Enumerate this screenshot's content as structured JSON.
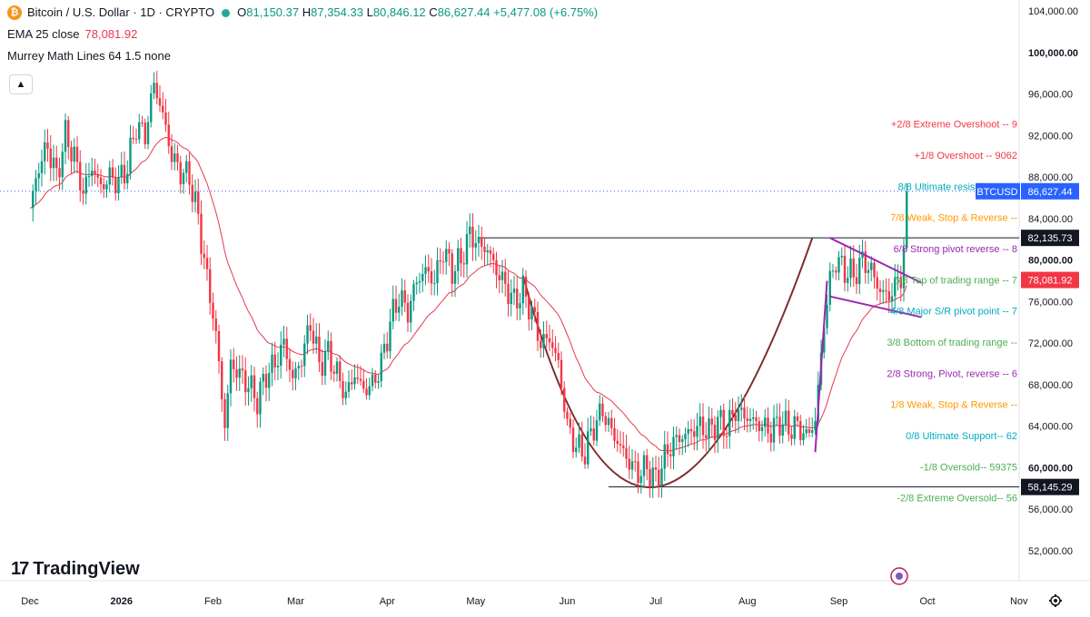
{
  "legend": {
    "symbol_title": "Bitcoin / U.S. Dollar · 1D · CRYPTO",
    "ohlc": {
      "o_label": "O",
      "o": "81,150.37",
      "h_label": "H",
      "h": "87,354.33",
      "l_label": "L",
      "l": "80,846.12",
      "c_label": "C",
      "c": "86,627.44",
      "change": "+5,477.08 (+6.75%)"
    },
    "ema_label": "EMA 25 close",
    "ema_value": "78,081.92",
    "murrey_label": "Murrey Math Lines 64 1.5 none"
  },
  "branding": {
    "logo_text": "TradingView"
  },
  "colors": {
    "up": "#089981",
    "down": "#f23645",
    "ema": "#e53950",
    "cup": "#7b2c2c",
    "flag": "#9c27b0",
    "price_tag": "#2962ff"
  },
  "icons": {
    "collapse": "chevron-up-icon",
    "settings": "gear-icon",
    "symbol": "bitcoin-icon"
  },
  "chart_data": {
    "type": "candlestick",
    "title": "Bitcoin / U.S. Dollar · 1D · CRYPTO",
    "ylim": [
      50000,
      104000
    ],
    "y_ticks": [
      "104,000.00",
      "100,000.00",
      "96,000.00",
      "92,000.00",
      "88,000.00",
      "84,000.00",
      "80,000.00",
      "76,000.00",
      "72,000.00",
      "68,000.00",
      "64,000.00",
      "60,000.00",
      "56,000.00",
      "52,000.00"
    ],
    "y_tick_values": [
      104000,
      100000,
      96000,
      92000,
      88000,
      84000,
      80000,
      76000,
      72000,
      68000,
      64000,
      60000,
      56000,
      52000
    ],
    "x_ticks": [
      "Dec",
      "2026",
      "Feb",
      "Mar",
      "Apr",
      "May",
      "Jun",
      "Jul",
      "Aug",
      "Sep",
      "Oct",
      "Nov"
    ],
    "x_tick_days": [
      0,
      31,
      62,
      90,
      121,
      151,
      182,
      212,
      243,
      274,
      304,
      335
    ],
    "anchor_path": [
      [
        0,
        85000
      ],
      [
        3,
        89000
      ],
      [
        6,
        91000
      ],
      [
        9,
        88000
      ],
      [
        12,
        92000
      ],
      [
        15,
        90000
      ],
      [
        18,
        86500
      ],
      [
        21,
        89000
      ],
      [
        24,
        87000
      ],
      [
        27,
        88000
      ],
      [
        30,
        87500
      ],
      [
        33,
        89000
      ],
      [
        36,
        93000
      ],
      [
        39,
        92000
      ],
      [
        42,
        97000
      ],
      [
        45,
        94000
      ],
      [
        48,
        90000
      ],
      [
        51,
        88500
      ],
      [
        54,
        88000
      ],
      [
        57,
        84000
      ],
      [
        60,
        78000
      ],
      [
        62,
        75000
      ],
      [
        64,
        70000
      ],
      [
        66,
        64000
      ],
      [
        68,
        70000
      ],
      [
        71,
        69000
      ],
      [
        74,
        68000
      ],
      [
        77,
        66500
      ],
      [
        80,
        69000
      ],
      [
        83,
        70000
      ],
      [
        86,
        72000
      ],
      [
        89,
        68500
      ],
      [
        92,
        70500
      ],
      [
        95,
        74000
      ],
      [
        98,
        70000
      ],
      [
        101,
        71000
      ],
      [
        104,
        69000
      ],
      [
        107,
        67000
      ],
      [
        110,
        69000
      ],
      [
        113,
        67500
      ],
      [
        116,
        68000
      ],
      [
        119,
        70000
      ],
      [
        122,
        74000
      ],
      [
        125,
        76500
      ],
      [
        128,
        75000
      ],
      [
        131,
        78000
      ],
      [
        134,
        79000
      ],
      [
        137,
        78000
      ],
      [
        140,
        81000
      ],
      [
        143,
        79000
      ],
      [
        146,
        80000
      ],
      [
        149,
        82500
      ],
      [
        152,
        81500
      ],
      [
        155,
        81000
      ],
      [
        158,
        79000
      ],
      [
        161,
        77500
      ],
      [
        164,
        76000
      ],
      [
        167,
        77000
      ],
      [
        170,
        75000
      ],
      [
        173,
        72000
      ],
      [
        176,
        72500
      ],
      [
        179,
        70000
      ],
      [
        182,
        64000
      ],
      [
        185,
        62000
      ],
      [
        188,
        61500
      ],
      [
        191,
        64000
      ],
      [
        194,
        65500
      ],
      [
        197,
        63500
      ],
      [
        200,
        62000
      ],
      [
        203,
        60500
      ],
      [
        206,
        59500
      ],
      [
        209,
        60000
      ],
      [
        212,
        58800
      ],
      [
        215,
        61000
      ],
      [
        218,
        62500
      ],
      [
        221,
        63000
      ],
      [
        224,
        63500
      ],
      [
        227,
        64000
      ],
      [
        230,
        63500
      ],
      [
        233,
        64500
      ],
      [
        236,
        63800
      ],
      [
        239,
        65500
      ],
      [
        242,
        65000
      ],
      [
        245,
        64500
      ],
      [
        248,
        64000
      ],
      [
        251,
        63500
      ],
      [
        254,
        64500
      ],
      [
        257,
        63800
      ],
      [
        260,
        64000
      ],
      [
        263,
        63000
      ],
      [
        266,
        64500
      ],
      [
        269,
        74000
      ],
      [
        271,
        78000
      ],
      [
        273,
        80000
      ],
      [
        276,
        79000
      ],
      [
        279,
        78500
      ],
      [
        282,
        80000
      ],
      [
        285,
        79000
      ],
      [
        288,
        77000
      ],
      [
        291,
        76500
      ],
      [
        293,
        77500
      ],
      [
        295,
        78500
      ],
      [
        296,
        81150
      ],
      [
        297,
        86627
      ]
    ],
    "ema_period": 25,
    "ema_last": 78081.92,
    "last_candle": {
      "open": 81150.37,
      "high": 87354.33,
      "low": 80846.12,
      "close": 86627.44
    },
    "price_labels": [
      {
        "text": "BTCUSD",
        "value": 86627.44,
        "value_text": "86,627.44"
      },
      {
        "text": "",
        "value": 82135.73,
        "value_text": "82,135.73"
      },
      {
        "text": "",
        "value": 78081.92,
        "value_text": "78,081.92"
      },
      {
        "text": "",
        "value": 58145.29,
        "value_text": "58,145.29"
      }
    ],
    "horizontal_lines": [
      {
        "value": 82135.73,
        "x_from": 152,
        "x_to": 360
      },
      {
        "value": 58145.29,
        "x_from": 196,
        "x_to": 360
      }
    ],
    "cup": {
      "x": [
        167,
        212,
        265
      ],
      "y": [
        78500,
        58145,
        82135
      ]
    },
    "flag": {
      "pole": {
        "x": [
          266,
          270
        ],
        "y": [
          61500,
          78000
        ]
      },
      "upper": {
        "x": [
          271,
          302
        ],
        "y": [
          82135,
          77800
        ]
      },
      "lower": {
        "x": [
          271,
          302
        ],
        "y": [
          76500,
          74500
        ]
      }
    },
    "murrey_levels": [
      {
        "label": "+2/8 Extreme Overshoot --",
        "value_text": "9",
        "y": 93100,
        "color": "#f23645"
      },
      {
        "label": "+1/8 Overshoot --",
        "value_text": "9062",
        "y": 90100,
        "color": "#f23645"
      },
      {
        "label": "8/8 Ultimate resistance --",
        "value_text": "8",
        "y": 87100,
        "color": "#00acc1"
      },
      {
        "label": "7/8 Weak, Stop & Reverse --",
        "value_text": "",
        "y": 84100,
        "color": "#ff9800"
      },
      {
        "label": "6/8 Strong pivot reverse --",
        "value_text": "8",
        "y": 81100,
        "color": "#9c27b0"
      },
      {
        "label": "5/8 Top of trading range --",
        "value_text": "7",
        "y": 78100,
        "color": "#4caf50"
      },
      {
        "label": "4/8 Major S/R pivot point --",
        "value_text": "7",
        "y": 75100,
        "color": "#00acc1"
      },
      {
        "label": "3/8 Bottom of trading range --",
        "value_text": "",
        "y": 72100,
        "color": "#4caf50"
      },
      {
        "label": "2/8 Strong, Pivot, reverse --",
        "value_text": "6",
        "y": 69100,
        "color": "#9c27b0"
      },
      {
        "label": "1/8 Weak, Stop & Reverse --",
        "value_text": "",
        "y": 66100,
        "color": "#ff9800"
      },
      {
        "label": "0/8 Ultimate Support--",
        "value_text": "62",
        "y": 63100,
        "color": "#00acc1"
      },
      {
        "label": "-1/8 Oversold--",
        "value_text": "59375",
        "y": 60100,
        "color": "#4caf50"
      },
      {
        "label": "-2/8 Extreme Oversold--",
        "value_text": "56",
        "y": 57100,
        "color": "#4caf50"
      }
    ]
  }
}
